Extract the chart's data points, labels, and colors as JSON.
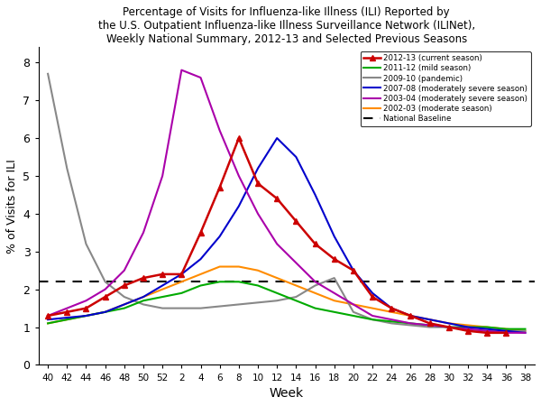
{
  "title": "Percentage of Visits for Influenza-like Illness (ILI) Reported by\nthe U.S. Outpatient Influenza-like Illness Surveillance Network (ILINet),\nWeekly National Summary, 2012-13 and Selected Previous Seasons",
  "xlabel": "Week",
  "ylabel": "% of Visits for ILI",
  "ylim": [
    0,
    8.4
  ],
  "national_baseline": 2.2,
  "x_tick_labels": [
    "40",
    "42",
    "44",
    "46",
    "48",
    "50",
    "52",
    "2",
    "4",
    "6",
    "8",
    "10",
    "12",
    "14",
    "16",
    "18",
    "20",
    "22",
    "24",
    "26",
    "28",
    "30",
    "32",
    "34",
    "36",
    "38"
  ],
  "legend_labels": [
    "2012-13 (current season)",
    "2011-12 (mild season)",
    "2009-10 (pandemic)",
    "2007-08 (moderately severe season)",
    "2003-04 (moderately severe season)",
    "2002-03 (moderate season)",
    "National Baseline"
  ],
  "background_color": "#FFFFFF",
  "series": {
    "2012-13 (current season)": {
      "color": "#CC0000",
      "marker": "^",
      "linewidth": 1.8,
      "zorder": 10,
      "values": [
        1.3,
        1.4,
        1.5,
        1.8,
        2.1,
        2.3,
        2.4,
        2.4,
        3.5,
        4.7,
        6.0,
        4.8,
        4.4,
        3.8,
        3.2,
        2.8,
        2.5,
        1.8,
        1.5,
        1.3,
        1.1,
        1.0,
        0.9,
        0.85,
        0.85,
        null
      ]
    },
    "2011-12 (mild season)": {
      "color": "#00AA00",
      "marker": null,
      "linewidth": 1.5,
      "zorder": 5,
      "values": [
        1.1,
        1.2,
        1.3,
        1.4,
        1.5,
        1.7,
        1.8,
        1.9,
        2.1,
        2.2,
        2.2,
        2.1,
        1.9,
        1.7,
        1.5,
        1.4,
        1.3,
        1.2,
        1.15,
        1.1,
        1.05,
        1.0,
        1.0,
        1.0,
        0.95,
        0.95
      ]
    },
    "2009-10 (pandemic)": {
      "color": "#888888",
      "marker": null,
      "linewidth": 1.5,
      "zorder": 4,
      "values": [
        7.7,
        5.2,
        3.2,
        2.2,
        1.8,
        1.6,
        1.5,
        1.5,
        1.5,
        1.55,
        1.6,
        1.65,
        1.7,
        1.8,
        2.1,
        2.3,
        1.4,
        1.2,
        1.1,
        1.05,
        1.0,
        1.0,
        0.95,
        0.9,
        0.9,
        0.9
      ]
    },
    "2007-08 (moderately severe season)": {
      "color": "#0000CC",
      "marker": null,
      "linewidth": 1.5,
      "zorder": 6,
      "values": [
        1.2,
        1.25,
        1.3,
        1.4,
        1.6,
        1.8,
        2.1,
        2.4,
        2.8,
        3.4,
        4.2,
        5.2,
        6.0,
        5.5,
        4.5,
        3.4,
        2.5,
        1.9,
        1.5,
        1.3,
        1.2,
        1.1,
        1.0,
        0.95,
        0.9,
        0.85
      ]
    },
    "2003-04 (moderately severe season)": {
      "color": "#AA00AA",
      "marker": null,
      "linewidth": 1.5,
      "zorder": 7,
      "values": [
        1.3,
        1.5,
        1.7,
        2.0,
        2.5,
        3.5,
        5.0,
        7.8,
        7.6,
        6.2,
        5.0,
        4.0,
        3.2,
        2.7,
        2.2,
        1.9,
        1.6,
        1.3,
        1.2,
        1.1,
        1.05,
        1.0,
        0.95,
        0.9,
        0.85,
        0.85
      ]
    },
    "2002-03 (moderate season)": {
      "color": "#FF8C00",
      "marker": null,
      "linewidth": 1.5,
      "zorder": 3,
      "values": [
        1.1,
        1.2,
        1.3,
        1.4,
        1.6,
        1.8,
        2.0,
        2.2,
        2.4,
        2.6,
        2.6,
        2.5,
        2.3,
        2.1,
        1.9,
        1.7,
        1.6,
        1.5,
        1.4,
        1.3,
        1.2,
        1.1,
        1.05,
        1.0,
        0.95,
        0.9
      ]
    }
  }
}
